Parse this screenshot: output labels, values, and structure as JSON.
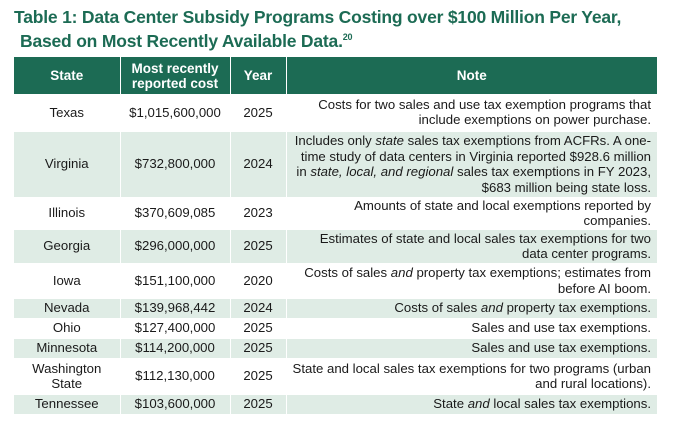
{
  "title": {
    "line1": "Table 1: Data Center Subsidy Programs Costing over $100 Million Per Year,",
    "line2": "Based on Most Recently Available Data.",
    "footnote": "20"
  },
  "table": {
    "headers": [
      "State",
      "Most recently reported cost",
      "Year",
      "Note"
    ],
    "rows": [
      {
        "state": "Texas",
        "cost": "$1,015,600,000",
        "year": "2025",
        "note": [
          "Costs for two sales and use tax exemption programs that include exemptions on power purchase."
        ]
      },
      {
        "state": "Virginia",
        "cost": "$732,800,000",
        "year": "2024",
        "note": [
          "Includes only ",
          {
            "em": "state"
          },
          " sales tax exemptions from ACFRs. A one-time study of data centers in Virginia reported $928.6 million in ",
          {
            "em": "state, local, and regional"
          },
          " sales tax exemptions in FY 2023, $683 million being state loss."
        ]
      },
      {
        "state": "Illinois",
        "cost": "$370,609,085",
        "year": "2023",
        "note": [
          "Amounts of state and local exemptions reported by companies."
        ]
      },
      {
        "state": "Georgia",
        "cost": "$296,000,000",
        "year": "2025",
        "note": [
          "Estimates of state and local sales tax exemptions for two data center programs."
        ]
      },
      {
        "state": "Iowa",
        "cost": "$151,100,000",
        "year": "2020",
        "note": [
          "Costs of sales ",
          {
            "em": "and"
          },
          " property tax exemptions; estimates from before AI boom."
        ]
      },
      {
        "state": "Nevada",
        "cost": "$139,968,442",
        "year": "2024",
        "note": [
          "Costs of sales ",
          {
            "em": "and"
          },
          " property tax exemptions."
        ]
      },
      {
        "state": "Ohio",
        "cost": "$127,400,000",
        "year": "2025",
        "note": [
          "Sales and use tax exemptions."
        ]
      },
      {
        "state": "Minnesota",
        "cost": "$114,200,000",
        "year": "2025",
        "note": [
          "Sales and use tax exemptions."
        ]
      },
      {
        "state": "Washington State",
        "cost": "$112,130,000",
        "year": "2025",
        "note": [
          "State and local sales tax exemptions for two programs (urban and rural locations)."
        ]
      },
      {
        "state": "Tennessee",
        "cost": "$103,600,000",
        "year": "2025",
        "note": [
          "State ",
          {
            "em": "and"
          },
          " local sales tax exemptions."
        ]
      }
    ]
  }
}
